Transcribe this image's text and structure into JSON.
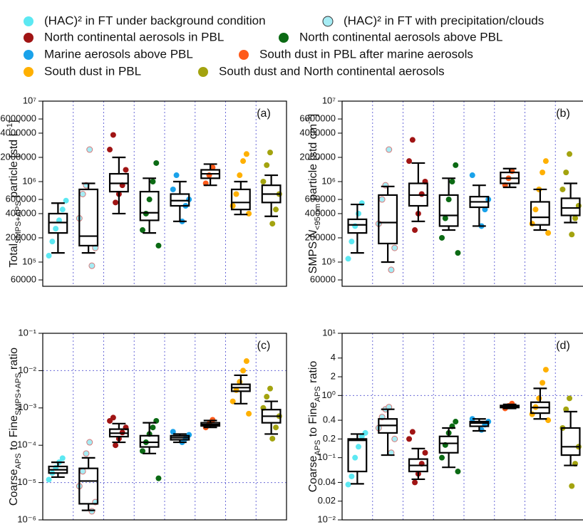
{
  "legend": {
    "entries": [
      {
        "name": "(HAC)² in FT under background condition",
        "color": "#5ce8f2"
      },
      {
        "name": "(HAC)² in FT with precipitation/clouds",
        "color": "#a6ecf4",
        "stroke": "#d87a7a"
      },
      {
        "name": "North continental aerosols in PBL",
        "color": "#a01414"
      },
      {
        "name": "North continental aerosols above PBL",
        "color": "#0b6a14"
      },
      {
        "name": "Marine aerosols above PBL",
        "color": "#1aa2ea"
      },
      {
        "name": "South dust in PBL after marine aerosols",
        "color": "#ff5a1a"
      },
      {
        "name": "South dust in PBL",
        "color": "#ffb000"
      },
      {
        "name": "South dust and North continental aerosols",
        "color": "#a3a30f"
      }
    ]
  },
  "chart_data": [
    {
      "type": "box",
      "panel_label": "(a)",
      "log_scale": true,
      "y_label": [
        {
          "text": "Total"
        },
        {
          "text": "SMPS+APS",
          "style": "sub"
        },
        {
          "text": " particle [std L"
        },
        {
          "text": "-1",
          "style": "sup"
        },
        {
          "text": "]"
        }
      ],
      "ylim": [
        50000,
        10000000
      ],
      "yticks": [
        {
          "value": 10000000,
          "label": "10⁷"
        },
        6000000,
        4000000,
        2000000,
        {
          "value": 1000000,
          "label": "10⁶"
        },
        600000,
        400000,
        200000,
        {
          "value": 100000,
          "label": "10⁵"
        },
        60000
      ],
      "ytick_labels": [
        "10⁷",
        "6",
        "4",
        "2",
        "10⁶",
        "6",
        "4",
        "2",
        "10⁵",
        "6"
      ],
      "reference_lines": [],
      "series": [
        {
          "box": [
            130000,
            230000,
            310000,
            400000,
            540000
          ],
          "points": [
            120000,
            180000,
            260000,
            330000,
            450000,
            580000
          ]
        },
        {
          "box": [
            130000,
            160000,
            210000,
            800000,
            950000
          ],
          "points": [
            90000,
            150000,
            350000,
            700000,
            900000,
            2500000
          ]
        },
        {
          "box": [
            400000,
            750000,
            950000,
            1250000,
            2000000
          ],
          "points": [
            550000,
            700000,
            900000,
            1400000,
            2500000,
            3800000
          ]
        },
        {
          "box": [
            230000,
            330000,
            410000,
            750000,
            1100000
          ],
          "points": [
            160000,
            250000,
            400000,
            600000,
            1000000,
            1700000
          ]
        },
        {
          "box": [
            320000,
            500000,
            580000,
            700000,
            1000000
          ],
          "points": [
            320000,
            500000,
            600000,
            800000,
            1200000
          ]
        },
        {
          "box": [
            900000,
            1100000,
            1250000,
            1400000,
            1650000
          ],
          "points": [
            950000,
            1200000,
            1500000
          ]
        },
        {
          "box": [
            390000,
            450000,
            550000,
            800000,
            1000000
          ],
          "points": [
            400000,
            500000,
            700000,
            1200000,
            1800000,
            2200000
          ]
        },
        {
          "box": [
            370000,
            550000,
            700000,
            900000,
            1200000
          ],
          "points": [
            300000,
            450000,
            700000,
            1000000,
            1600000,
            2300000
          ]
        }
      ]
    },
    {
      "type": "box",
      "panel_label": "(b)",
      "log_scale": true,
      "y_label": [
        {
          "text": "SMPS "
        },
        {
          "text": "N",
          "style": "italic"
        },
        {
          "text": "<95 nm",
          "style": "sub"
        },
        {
          "text": " particle [std cm"
        },
        {
          "text": "-3",
          "style": "sup"
        },
        {
          "text": "]"
        }
      ],
      "ylim": [
        50000,
        10000000
      ],
      "yticks": [
        {
          "value": 10000000,
          "label": "10⁷"
        },
        6000000,
        4000000,
        2000000,
        {
          "value": 1000000,
          "label": "10⁶"
        },
        600000,
        400000,
        200000,
        {
          "value": 100000,
          "label": "10⁵"
        },
        60000
      ],
      "ytick_labels": [
        "10⁷",
        "6",
        "4",
        "2",
        "10⁶",
        "6",
        "4",
        "2",
        "10⁵",
        "6"
      ],
      "reference_lines": [],
      "series": [
        {
          "box": [
            130000,
            230000,
            290000,
            340000,
            520000
          ],
          "points": [
            110000,
            180000,
            280000,
            400000,
            540000
          ]
        },
        {
          "box": [
            100000,
            170000,
            310000,
            680000,
            870000
          ],
          "points": [
            80000,
            150000,
            300000,
            600000,
            900000,
            2500000
          ]
        },
        {
          "box": [
            320000,
            500000,
            680000,
            950000,
            1700000
          ],
          "points": [
            250000,
            400000,
            700000,
            1000000,
            1800000,
            3300000
          ]
        },
        {
          "box": [
            250000,
            280000,
            380000,
            680000,
            1100000
          ],
          "points": [
            130000,
            200000,
            350000,
            600000,
            1000000,
            1600000
          ]
        },
        {
          "box": [
            280000,
            480000,
            560000,
            650000,
            900000
          ],
          "points": [
            280000,
            450000,
            600000,
            1200000
          ]
        },
        {
          "box": [
            850000,
            950000,
            1100000,
            1300000,
            1450000
          ],
          "points": [
            900000,
            1100000,
            1350000
          ]
        },
        {
          "box": [
            250000,
            290000,
            360000,
            560000,
            800000
          ],
          "points": [
            230000,
            300000,
            450000,
            800000,
            1300000,
            1800000
          ]
        },
        {
          "box": [
            310000,
            380000,
            470000,
            620000,
            950000
          ],
          "points": [
            220000,
            350000,
            500000,
            800000,
            1300000,
            2200000
          ]
        }
      ]
    },
    {
      "type": "box",
      "panel_label": "(c)",
      "log_scale": true,
      "y_label": [
        {
          "text": "Coarse"
        },
        {
          "text": "APS",
          "style": "sub"
        },
        {
          "text": " to Fine"
        },
        {
          "text": "SMPS+APS",
          "style": "sub"
        },
        {
          "text": " ratio"
        }
      ],
      "ylim": [
        1e-06,
        0.1
      ],
      "yticks": [
        {
          "value": 0.1,
          "label": "10⁻¹"
        },
        {
          "value": 0.01,
          "label": "10⁻²"
        },
        {
          "value": 0.001,
          "label": "10⁻³"
        },
        {
          "value": 0.0001,
          "label": "10⁻⁴"
        },
        {
          "value": 1e-05,
          "label": "10⁻⁵"
        },
        {
          "value": 1e-06,
          "label": "10⁻⁶"
        }
      ],
      "reference_lines": [
        0.01,
        1e-05
      ],
      "series": [
        {
          "box": [
            1.4e-05,
            1.8e-05,
            2.2e-05,
            2.7e-05,
            3.5e-05
          ],
          "points": [
            1.2e-05,
            1.8e-05,
            2.5e-05,
            3.5e-05,
            4.5e-05
          ]
        },
        {
          "box": [
            1.8e-06,
            2.7e-06,
            1.1e-05,
            2.4e-05,
            4.6e-05
          ],
          "points": [
            1.7e-06,
            3e-06,
            8e-06,
            2e-05,
            6e-05,
            0.00012
          ]
        },
        {
          "box": [
            0.00012,
            0.00017,
            0.00021,
            0.00027,
            0.00038
          ],
          "points": [
            0.0001,
            0.00015,
            0.00022,
            0.0003,
            0.00045,
            0.00055
          ]
        },
        {
          "box": [
            6e-05,
            9e-05,
            0.00012,
            0.00018,
            0.0004
          ],
          "points": [
            1.3e-05,
            7e-05,
            0.00012,
            0.0002,
            0.0003,
            0.00045
          ]
        },
        {
          "box": [
            0.00012,
            0.00014,
            0.00016,
            0.00018,
            0.0002
          ],
          "points": [
            0.00012,
            0.00015,
            0.00019,
            0.00023
          ]
        },
        {
          "box": [
            0.0003,
            0.00033,
            0.00036,
            0.0004,
            0.00046
          ],
          "points": [
            0.0003,
            0.00038,
            0.00048
          ]
        },
        {
          "box": [
            0.0013,
            0.0028,
            0.0035,
            0.0043,
            0.0075
          ],
          "points": [
            0.0007,
            0.0015,
            0.003,
            0.005,
            0.01,
            0.018
          ]
        },
        {
          "box": [
            0.0002,
            0.0004,
            0.0006,
            0.0009,
            0.0015
          ],
          "points": [
            0.00015,
            0.0003,
            0.0006,
            0.001,
            0.002,
            0.0033
          ]
        }
      ]
    },
    {
      "type": "box",
      "panel_label": "(d)",
      "log_scale": true,
      "y_label": [
        {
          "text": "Coarse"
        },
        {
          "text": "APS",
          "style": "sub"
        },
        {
          "text": " to Fine"
        },
        {
          "text": "APS",
          "style": "sub"
        },
        {
          "text": " ratio"
        }
      ],
      "ylim": [
        0.01,
        10
      ],
      "yticks": [
        {
          "value": 10,
          "label": "10¹"
        },
        4,
        2,
        {
          "value": 1,
          "label": "10⁰"
        },
        0.4,
        0.2,
        {
          "value": 0.1,
          "label": "10⁻¹"
        },
        0.04,
        0.02,
        {
          "value": 0.01,
          "label": "10⁻²"
        }
      ],
      "reference_lines": [
        1
      ],
      "series": [
        {
          "box": [
            0.038,
            0.06,
            0.19,
            0.2,
            0.24
          ],
          "points": [
            0.037,
            0.05,
            0.1,
            0.15,
            0.22,
            0.25
          ]
        },
        {
          "box": [
            0.11,
            0.25,
            0.33,
            0.42,
            0.6
          ],
          "points": [
            0.12,
            0.2,
            0.3,
            0.45,
            0.6,
            0.65
          ]
        },
        {
          "box": [
            0.045,
            0.06,
            0.075,
            0.095,
            0.14
          ],
          "points": [
            0.04,
            0.055,
            0.08,
            0.12,
            0.2,
            0.26
          ]
        },
        {
          "box": [
            0.07,
            0.12,
            0.17,
            0.22,
            0.3
          ],
          "points": [
            0.06,
            0.1,
            0.16,
            0.25,
            0.32,
            0.38
          ]
        },
        {
          "box": [
            0.27,
            0.32,
            0.36,
            0.38,
            0.42
          ],
          "points": [
            0.28,
            0.34,
            0.38,
            0.42
          ]
        },
        {
          "box": [
            0.62,
            0.64,
            0.67,
            0.69,
            0.72
          ],
          "points": [
            0.62,
            0.68,
            0.74
          ]
        },
        {
          "box": [
            0.42,
            0.52,
            0.64,
            0.78,
            1.3
          ],
          "points": [
            0.4,
            0.5,
            0.65,
            0.9,
            1.6,
            2.6
          ]
        },
        {
          "box": [
            0.075,
            0.11,
            0.15,
            0.3,
            0.55
          ],
          "points": [
            0.035,
            0.08,
            0.15,
            0.3,
            0.6,
            0.9
          ]
        }
      ]
    }
  ]
}
